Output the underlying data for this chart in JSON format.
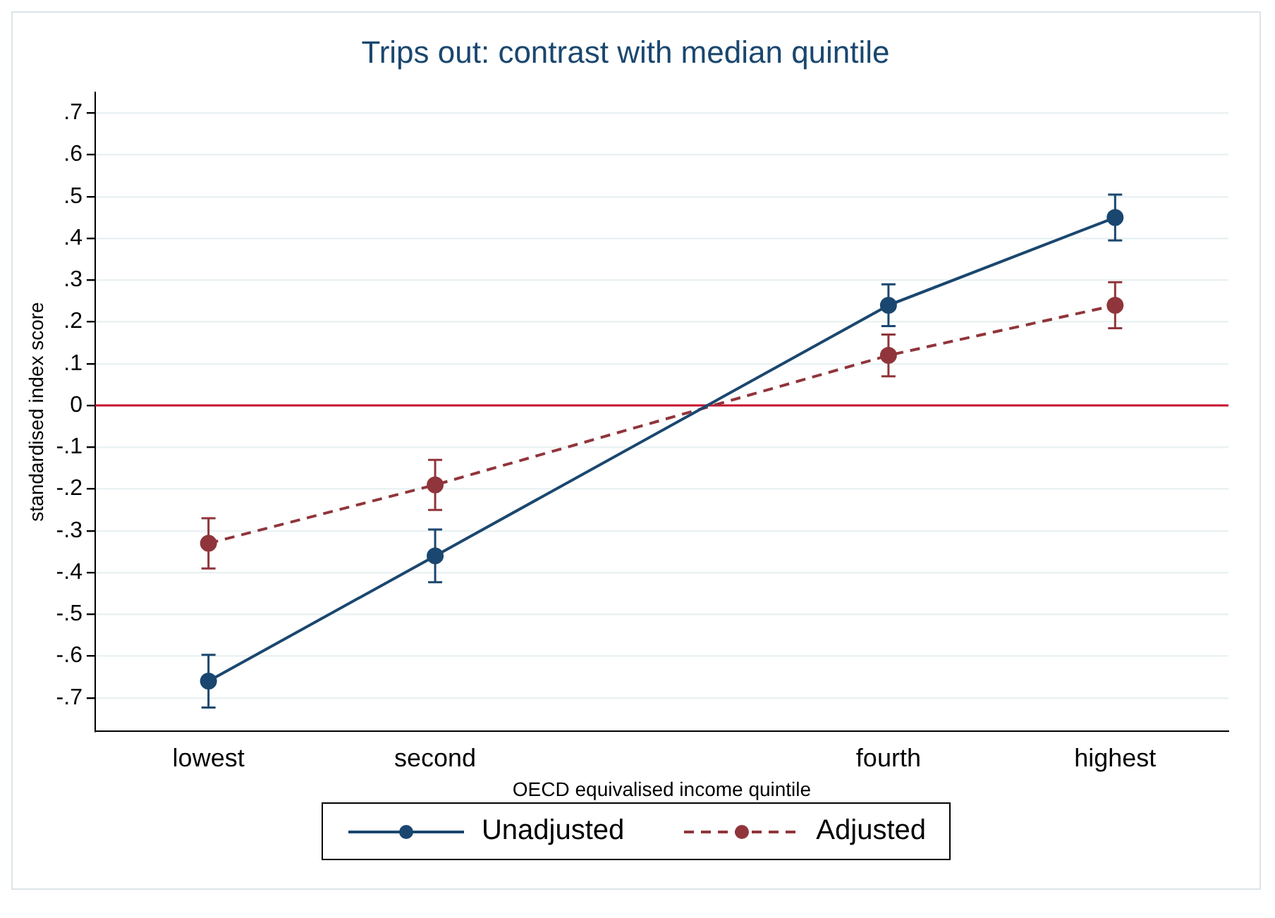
{
  "chart_data": {
    "type": "line",
    "title": "Trips out: contrast with median quintile",
    "xlabel": "OECD equivalised income quintile",
    "ylabel": "standardised index score",
    "categories": [
      "lowest",
      "second",
      null,
      "fourth",
      "highest"
    ],
    "ylim": [
      -0.78,
      0.75
    ],
    "yticks": [
      {
        "value": -0.7,
        "label": "-.7"
      },
      {
        "value": -0.6,
        "label": "-.6"
      },
      {
        "value": -0.5,
        "label": "-.5"
      },
      {
        "value": -0.4,
        "label": "-.4"
      },
      {
        "value": -0.3,
        "label": "-.3"
      },
      {
        "value": -0.2,
        "label": "-.2"
      },
      {
        "value": -0.1,
        "label": "-.1"
      },
      {
        "value": 0,
        "label": "0"
      },
      {
        "value": 0.1,
        "label": ".1"
      },
      {
        "value": 0.2,
        "label": ".2"
      },
      {
        "value": 0.3,
        "label": ".3"
      },
      {
        "value": 0.4,
        "label": ".4"
      },
      {
        "value": 0.5,
        "label": ".5"
      },
      {
        "value": 0.6,
        "label": ".6"
      },
      {
        "value": 0.7,
        "label": ".7"
      }
    ],
    "grid": "y",
    "legend": "bottom",
    "marker": "circle",
    "ref_lines": [
      {
        "axis": "y",
        "value": 0,
        "color": "#c8102e"
      }
    ],
    "series": [
      {
        "name": "Unadjusted",
        "color": "#1a476f",
        "line_style": "solid",
        "values": [
          -0.66,
          -0.36,
          null,
          0.24,
          0.45
        ],
        "errors": [
          0.063,
          0.063,
          null,
          0.05,
          0.055
        ]
      },
      {
        "name": "Adjusted",
        "color": "#90353b",
        "line_style": "dashed",
        "values": [
          -0.33,
          -0.19,
          null,
          0.12,
          0.24
        ],
        "errors": [
          0.06,
          0.06,
          null,
          0.05,
          0.055
        ]
      }
    ]
  }
}
